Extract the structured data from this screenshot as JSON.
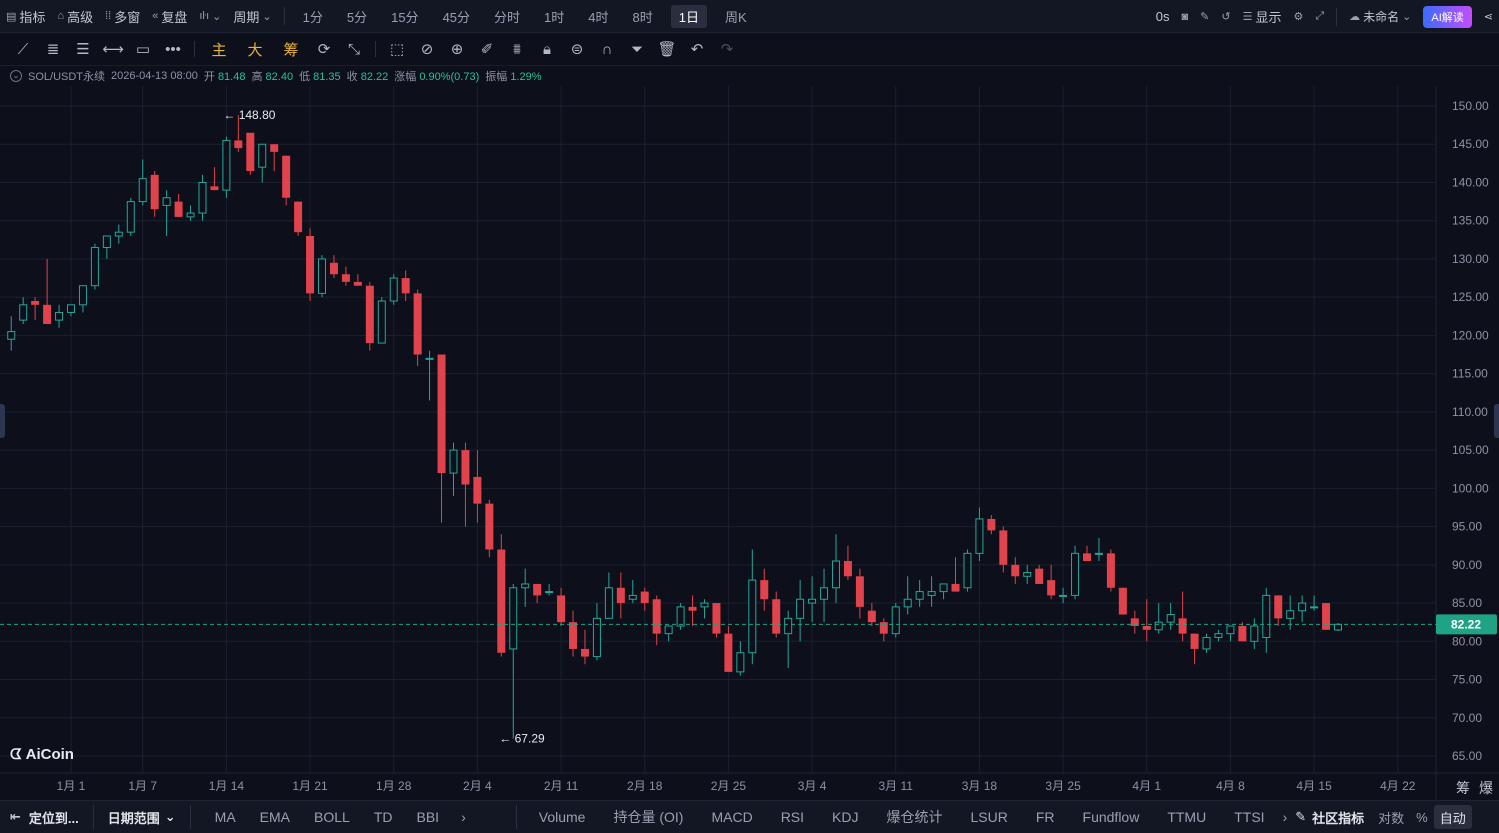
{
  "topbar": {
    "items": [
      "指标",
      "高级",
      "多窗",
      "复盘"
    ],
    "item_icons": [
      "indicator-icon",
      "advanced-icon",
      "multi-window-icon",
      "replay-icon"
    ],
    "period_label": "周期",
    "periods": [
      "1分",
      "5分",
      "15分",
      "45分",
      "分时",
      "1时",
      "4时",
      "8时",
      "1日",
      "周K"
    ],
    "active_period": "1日",
    "timer": "0s",
    "display_label": "显示",
    "layout_name": "未命名",
    "ai_label": "AI解读"
  },
  "toolbar": {
    "cn_tools": [
      "主",
      "大",
      "筹"
    ]
  },
  "info": {
    "symbol": "SOL/USDT永续",
    "date": "2026-04-13 08:00",
    "open_label": "开",
    "open": "81.48",
    "high_label": "高",
    "high": "82.40",
    "low_label": "低",
    "low": "81.35",
    "close_label": "收",
    "close": "82.22",
    "change_label": "涨幅",
    "change": "0.90%(0.73)",
    "amp_label": "振幅",
    "amp": "1.29%"
  },
  "chart_data": {
    "type": "candlestick",
    "y_ticks": [
      "150.00",
      "145.00",
      "140.00",
      "135.00",
      "130.00",
      "125.00",
      "120.00",
      "115.00",
      "110.00",
      "105.00",
      "100.00",
      "95.00",
      "90.00",
      "85.00",
      "80.00",
      "75.00",
      "70.00",
      "65.00"
    ],
    "ylim": [
      62.5,
      152.5
    ],
    "x_ticks": [
      "1月 1",
      "1月 7",
      "1月 14",
      "1月 21",
      "1月 28",
      "2月 4",
      "2月 11",
      "2月 18",
      "2月 25",
      "3月 4",
      "3月 11",
      "3月 18",
      "3月 25",
      "4月 1",
      "4月 8",
      "4月 15",
      "4月 22"
    ],
    "x_tick_day_index": [
      0,
      6,
      13,
      20,
      27,
      34,
      41,
      48,
      55,
      62,
      69,
      76,
      83,
      90,
      97,
      104,
      111
    ],
    "first_day_index": -5,
    "last_price": "82.22",
    "high_marker": {
      "label": "148.80",
      "value": 148.8,
      "day_index": 13
    },
    "low_marker": {
      "label": "67.29",
      "value": 67.29,
      "day_index": 36
    },
    "colors": {
      "up": "#26a69a",
      "down": "#e0434b",
      "grid": "#1b2030",
      "axis_text": "#8d93a5",
      "price_tag": "#1fa384"
    },
    "candles": [
      [
        119.5,
        122.5,
        118,
        120.5
      ],
      [
        122,
        125,
        121.5,
        124
      ],
      [
        124.5,
        125,
        122,
        124
      ],
      [
        124,
        130,
        122,
        121.5
      ],
      [
        122,
        124,
        121,
        123
      ],
      [
        123,
        124,
        122.5,
        124
      ],
      [
        124,
        126,
        123,
        126.5
      ],
      [
        126.5,
        132,
        126,
        131.5
      ],
      [
        131.5,
        133,
        130,
        133
      ],
      [
        133,
        134.5,
        132,
        133.5
      ],
      [
        133.5,
        138,
        133,
        137.5
      ],
      [
        137.5,
        143,
        137,
        140.5
      ],
      [
        141,
        141.5,
        135.5,
        136.5
      ],
      [
        137,
        139,
        133,
        138
      ],
      [
        137.5,
        138.5,
        135.5,
        135.5
      ],
      [
        135.5,
        137,
        135,
        136
      ],
      [
        136,
        141,
        135,
        140
      ],
      [
        139.5,
        142,
        139,
        139
      ],
      [
        139,
        146,
        138,
        145.5
      ],
      [
        145.5,
        148.8,
        144,
        144.5
      ],
      [
        146.5,
        146.5,
        141,
        141.5
      ],
      [
        142,
        145,
        140,
        145
      ],
      [
        145,
        145,
        141.5,
        144
      ],
      [
        143.5,
        143.5,
        137,
        138
      ],
      [
        137.5,
        137.5,
        133,
        133.5
      ],
      [
        133,
        134,
        124.5,
        125.5
      ],
      [
        125.5,
        130.5,
        125,
        130
      ],
      [
        129.5,
        130.5,
        127.5,
        128
      ],
      [
        128,
        129,
        126.5,
        127
      ],
      [
        127,
        128,
        126.5,
        126.5
      ],
      [
        126.5,
        127,
        118,
        119
      ],
      [
        119,
        125,
        119,
        124.5
      ],
      [
        124.5,
        128,
        124,
        127.5
      ],
      [
        127.5,
        128.5,
        124.5,
        125.5
      ],
      [
        125.5,
        126,
        116,
        117.5
      ],
      [
        117,
        118,
        111.5,
        117
      ],
      [
        117.5,
        117.5,
        95.5,
        102
      ],
      [
        102,
        106,
        99,
        105
      ],
      [
        105,
        106,
        95,
        100.5
      ],
      [
        101.5,
        105,
        95.5,
        98
      ],
      [
        98,
        98.5,
        91,
        92
      ],
      [
        92,
        94,
        78,
        78.5
      ],
      [
        79,
        87.5,
        67.29,
        87
      ],
      [
        87,
        89.5,
        84.5,
        87.5
      ],
      [
        87.5,
        87.5,
        85,
        86
      ],
      [
        86.5,
        87.5,
        86,
        86.5
      ],
      [
        86,
        87,
        82,
        82.5
      ],
      [
        82.5,
        84,
        78,
        79
      ],
      [
        79,
        81.5,
        77,
        78
      ],
      [
        78,
        85,
        77.5,
        83
      ],
      [
        83,
        89,
        83,
        87
      ],
      [
        87,
        89,
        83,
        85
      ],
      [
        85.5,
        88,
        85,
        86
      ],
      [
        86.5,
        87,
        84,
        85
      ],
      [
        85.5,
        86,
        79.5,
        81
      ],
      [
        81,
        82,
        80,
        82
      ],
      [
        82,
        85,
        81.5,
        84.5
      ],
      [
        84.5,
        86,
        82,
        84
      ],
      [
        84.5,
        85.5,
        83,
        85
      ],
      [
        85,
        85,
        80.5,
        81
      ],
      [
        81,
        82,
        76,
        76
      ],
      [
        76,
        80,
        75.5,
        78.5
      ],
      [
        78.5,
        92,
        77,
        88
      ],
      [
        88,
        89.5,
        84,
        85.5
      ],
      [
        85.5,
        86.5,
        80.5,
        81
      ],
      [
        81,
        84,
        76.5,
        83
      ],
      [
        83,
        88,
        80,
        85.5
      ],
      [
        85,
        88.5,
        82.5,
        85.5
      ],
      [
        85.5,
        89.5,
        82.5,
        87
      ],
      [
        87,
        94,
        85,
        90.5
      ],
      [
        90.5,
        92.5,
        88,
        88.5
      ],
      [
        88.5,
        89.5,
        83,
        84.5
      ],
      [
        84,
        85,
        82,
        82.5
      ],
      [
        82.5,
        83,
        80,
        81
      ],
      [
        81,
        85,
        80.5,
        84.5
      ],
      [
        84.5,
        88.5,
        83.5,
        85.5
      ],
      [
        85.5,
        88,
        84.5,
        86.5
      ],
      [
        86,
        88.5,
        84.5,
        86.5
      ],
      [
        86.5,
        87.5,
        85.5,
        87.5
      ],
      [
        87.5,
        91,
        86.5,
        86.5
      ],
      [
        87,
        92,
        86.5,
        91.5
      ],
      [
        91.5,
        97.5,
        90.5,
        96
      ],
      [
        96,
        96.5,
        94,
        94.5
      ],
      [
        94.5,
        95,
        89,
        90
      ],
      [
        90,
        91,
        87.5,
        88.5
      ],
      [
        88.5,
        90,
        87.5,
        89
      ],
      [
        89.5,
        90,
        87.5,
        87.5
      ],
      [
        88,
        90,
        85.5,
        86
      ],
      [
        86,
        87,
        85,
        86
      ],
      [
        86,
        92.5,
        85.5,
        91.5
      ],
      [
        91.5,
        92.5,
        91,
        90.5
      ],
      [
        91.5,
        93.5,
        90.5,
        91.5
      ],
      [
        91.5,
        92,
        86.5,
        87
      ],
      [
        87,
        87,
        83.5,
        83.5
      ],
      [
        83,
        84,
        81,
        82
      ],
      [
        82,
        85.5,
        80,
        81.5
      ],
      [
        81.5,
        85,
        81,
        82.5
      ],
      [
        82.5,
        85,
        81.5,
        83.5
      ],
      [
        83,
        86.5,
        80,
        81
      ],
      [
        81,
        81,
        77,
        79
      ],
      [
        79,
        81,
        78.5,
        80.5
      ],
      [
        80.5,
        81.5,
        80,
        81
      ],
      [
        81,
        82,
        80,
        82
      ],
      [
        82,
        82.5,
        80,
        80
      ],
      [
        80,
        83,
        79,
        82
      ],
      [
        80.5,
        87,
        78.5,
        86
      ],
      [
        86,
        86,
        82,
        83
      ],
      [
        83,
        86,
        81.5,
        84
      ],
      [
        84,
        86,
        82.5,
        85
      ],
      [
        84.5,
        86,
        84,
        84.5
      ],
      [
        85,
        85,
        81.5,
        81.5
      ],
      [
        81.48,
        82.4,
        81.35,
        82.22
      ]
    ]
  },
  "logo": {
    "text": "AiCoin"
  },
  "right_corner": [
    "筹",
    "爆"
  ],
  "bottom": {
    "left_items": [
      "定位到...",
      "日期范围"
    ],
    "indicators_a": [
      "MA",
      "EMA",
      "BOLL",
      "TD",
      "BBI"
    ],
    "indicators_b": [
      "Volume",
      "持仓量 (OI)",
      "MACD",
      "RSI",
      "KDJ",
      "爆仓统计",
      "LSUR",
      "FR",
      "Fundflow",
      "TTMU",
      "TTSI"
    ],
    "community": "社区指标",
    "right_items": [
      "对数",
      "%",
      "自动"
    ]
  }
}
